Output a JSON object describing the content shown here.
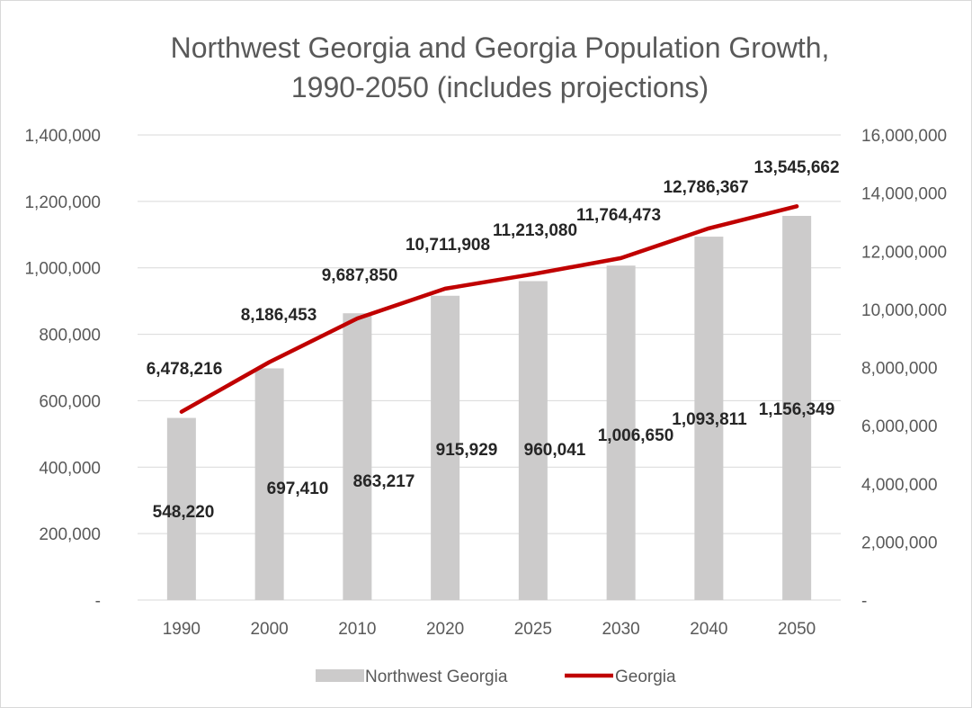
{
  "chart_data": {
    "type": "bar+line",
    "title_lines": [
      "Northwest Georgia and Georgia Population Growth,",
      "1990-2050 (includes projections)"
    ],
    "categories": [
      "1990",
      "2000",
      "2010",
      "2020",
      "2025",
      "2030",
      "2040",
      "2050"
    ],
    "y_left": {
      "min": 0,
      "max": 1400000,
      "tick_values": [
        0,
        200000,
        400000,
        600000,
        800000,
        1000000,
        1200000,
        1400000
      ],
      "tick_labels": [
        "-",
        "200,000",
        "400,000",
        "600,000",
        "800,000",
        "1,000,000",
        "1,200,000",
        "1,400,000"
      ]
    },
    "y_right": {
      "min": 0,
      "max": 16000000,
      "tick_values": [
        0,
        2000000,
        4000000,
        6000000,
        8000000,
        10000000,
        12000000,
        14000000,
        16000000
      ],
      "tick_labels": [
        "-",
        "2,000,000",
        "4,000,000",
        "6,000,000",
        "8,000,000",
        "10,000,000",
        "12,000,000",
        "14,000,000",
        "16,000,000"
      ]
    },
    "grid": "horizontal",
    "legend_position": "bottom",
    "series": [
      {
        "name": "Northwest Georgia",
        "type": "bar",
        "axis": "left",
        "color": "#cccbcb",
        "values": [
          548220,
          697410,
          863217,
          915929,
          960041,
          1006650,
          1093811,
          1156349
        ],
        "labels": [
          "548,220",
          "697,410",
          "863,217",
          "915,929",
          "960,041",
          "1,006,650",
          "1,093,811",
          "1,156,349"
        ]
      },
      {
        "name": "Georgia",
        "type": "line",
        "axis": "right",
        "color": "#c00000",
        "values": [
          6478216,
          8186453,
          9687850,
          10711908,
          11213080,
          11764473,
          12786367,
          13545662
        ],
        "labels": [
          "6,478,216",
          "8,186,453",
          "9,687,850",
          "10,711,908",
          "11,213,080",
          "11,764,473",
          "12,786,367",
          "13,545,662"
        ]
      }
    ]
  }
}
